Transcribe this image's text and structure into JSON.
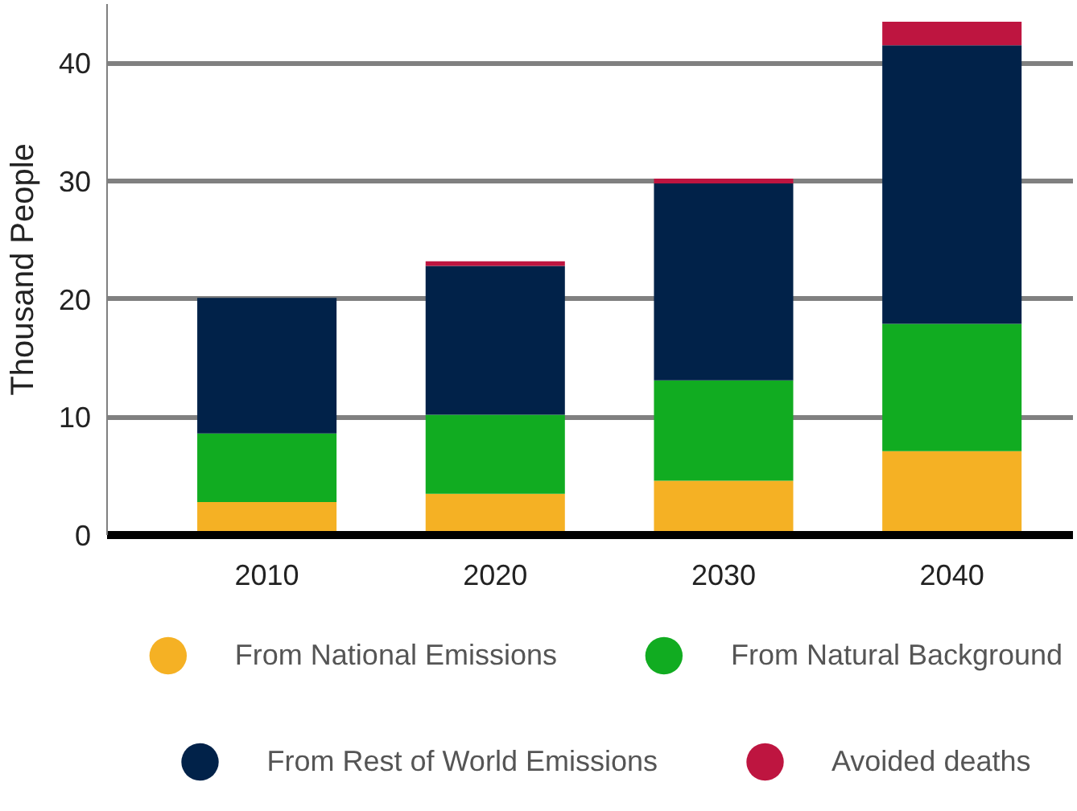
{
  "chart_data": {
    "type": "bar",
    "stacked": true,
    "ylabel": "Thousand People",
    "categories": [
      "2010",
      "2020",
      "2030",
      "2040"
    ],
    "series": [
      {
        "name": "From National Emissions",
        "color": "#f5b124",
        "values": [
          2.8,
          3.5,
          4.6,
          7.1
        ]
      },
      {
        "name": "From Natural Background",
        "color": "#11ac21",
        "values": [
          5.8,
          6.7,
          8.5,
          10.8
        ]
      },
      {
        "name": "From Rest of World Emissions",
        "color": "#012249",
        "values": [
          11.5,
          12.6,
          16.7,
          23.6
        ]
      },
      {
        "name": "Avoided deaths",
        "color": "#be1540",
        "values": [
          null,
          0.4,
          0.4,
          2.0
        ]
      }
    ],
    "ylim": [
      0,
      45
    ],
    "yticks": [
      0,
      10,
      20,
      30,
      40
    ],
    "grid": "y",
    "legend": "bottom"
  }
}
